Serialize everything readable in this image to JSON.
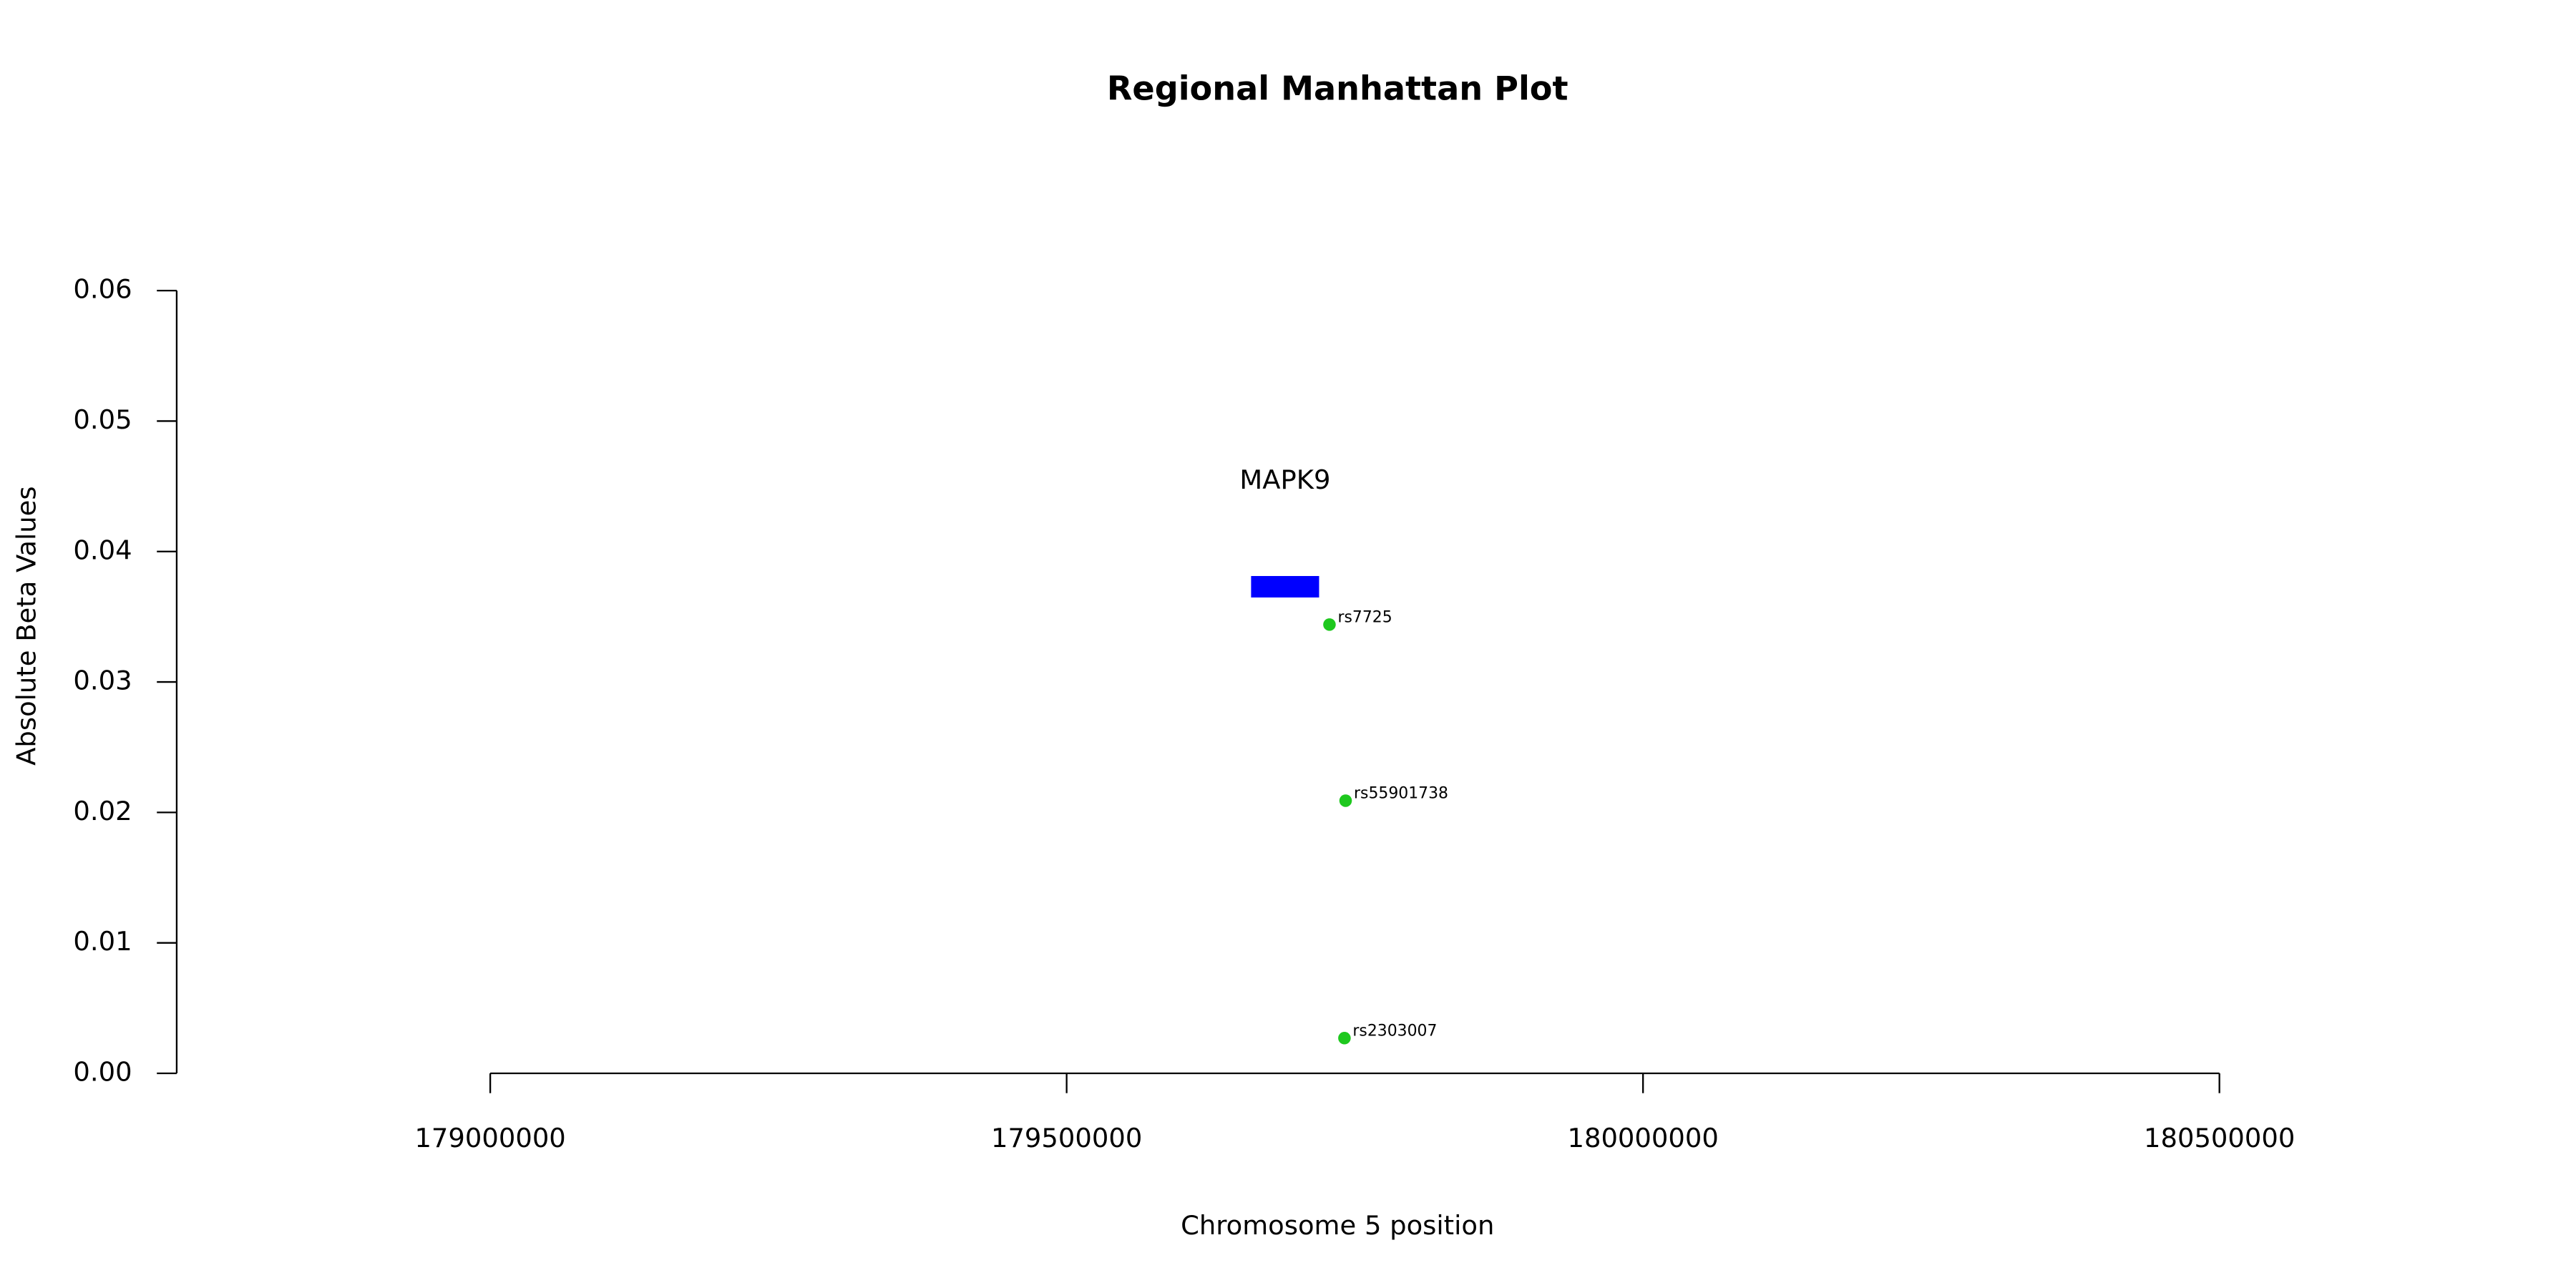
{
  "chart_data": {
    "type": "scatter",
    "title": "Regional Manhattan Plot",
    "x_label": "Chromosome 5 position",
    "y_label": "Absolute Beta Values",
    "xlim": [
      178728000,
      180742000
    ],
    "ylim": [
      0,
      0.06
    ],
    "xticks": [
      179000000,
      179500000,
      180000000,
      180500000
    ],
    "yticks": [
      {
        "value": 0,
        "label": "0.00"
      },
      {
        "value": 0.01,
        "label": "0.01"
      },
      {
        "value": 0.02,
        "label": "0.02"
      },
      {
        "value": 0.03,
        "label": "0.03"
      },
      {
        "value": 0.04,
        "label": "0.04"
      },
      {
        "value": 0.05,
        "label": "0.05"
      },
      {
        "value": 0.06,
        "label": "0.06"
      }
    ],
    "x": [
      179728000,
      179742000,
      179741000
    ],
    "values": [
      0.0344,
      0.0209,
      0.0027
    ],
    "labels": [
      "rs7725",
      "rs55901738",
      "rs2303007"
    ],
    "color": "#1ec81e",
    "genes": [
      {
        "label": "MAPK9",
        "start": 179660000,
        "end": 179719000,
        "y": 0.0373,
        "color": "#0000ff"
      }
    ]
  }
}
